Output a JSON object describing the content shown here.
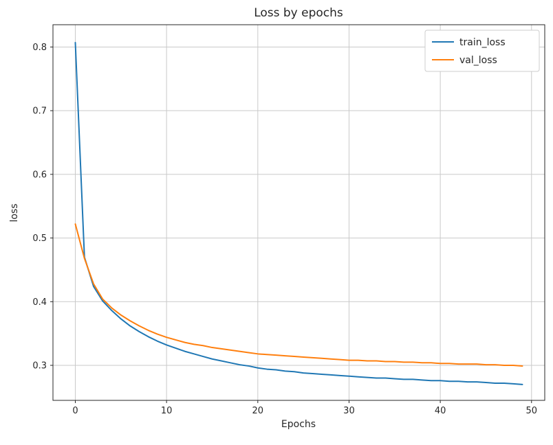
{
  "chart_data": {
    "type": "line",
    "title": "Loss by epochs",
    "xlabel": "Epochs",
    "ylabel": "loss",
    "x": [
      0,
      1,
      2,
      3,
      4,
      5,
      6,
      7,
      8,
      9,
      10,
      11,
      12,
      13,
      14,
      15,
      16,
      17,
      18,
      19,
      20,
      21,
      22,
      23,
      24,
      25,
      26,
      27,
      28,
      29,
      30,
      31,
      32,
      33,
      34,
      35,
      36,
      37,
      38,
      39,
      40,
      41,
      42,
      43,
      44,
      45,
      46,
      47,
      48,
      49
    ],
    "series": [
      {
        "name": "train_loss",
        "color": "#1f77b4",
        "values": [
          0.807,
          0.47,
          0.424,
          0.401,
          0.386,
          0.373,
          0.362,
          0.353,
          0.345,
          0.338,
          0.332,
          0.327,
          0.322,
          0.318,
          0.314,
          0.31,
          0.307,
          0.304,
          0.301,
          0.299,
          0.296,
          0.294,
          0.293,
          0.291,
          0.29,
          0.288,
          0.287,
          0.286,
          0.285,
          0.284,
          0.283,
          0.282,
          0.281,
          0.28,
          0.28,
          0.279,
          0.278,
          0.278,
          0.277,
          0.276,
          0.276,
          0.275,
          0.275,
          0.274,
          0.274,
          0.273,
          0.272,
          0.272,
          0.271,
          0.27
        ]
      },
      {
        "name": "val_loss",
        "color": "#ff7f0e",
        "values": [
          0.522,
          0.468,
          0.428,
          0.404,
          0.39,
          0.379,
          0.37,
          0.362,
          0.355,
          0.349,
          0.344,
          0.34,
          0.336,
          0.333,
          0.331,
          0.328,
          0.326,
          0.324,
          0.322,
          0.32,
          0.318,
          0.317,
          0.316,
          0.315,
          0.314,
          0.313,
          0.312,
          0.311,
          0.31,
          0.309,
          0.308,
          0.308,
          0.307,
          0.307,
          0.306,
          0.306,
          0.305,
          0.305,
          0.304,
          0.304,
          0.303,
          0.303,
          0.302,
          0.302,
          0.302,
          0.301,
          0.301,
          0.3,
          0.3,
          0.299
        ]
      }
    ],
    "xticks": [
      0,
      10,
      20,
      30,
      40,
      50
    ],
    "yticks": [
      0.3,
      0.4,
      0.5,
      0.6,
      0.7,
      0.8
    ],
    "xlim": [
      -2.45,
      51.45
    ],
    "ylim": [
      0.245,
      0.835
    ],
    "grid": true,
    "legend_position": "upper right",
    "colors": {
      "grid": "#c9c9c9",
      "spine": "#262626",
      "legend_border": "#cccccc",
      "background": "#ffffff"
    }
  }
}
